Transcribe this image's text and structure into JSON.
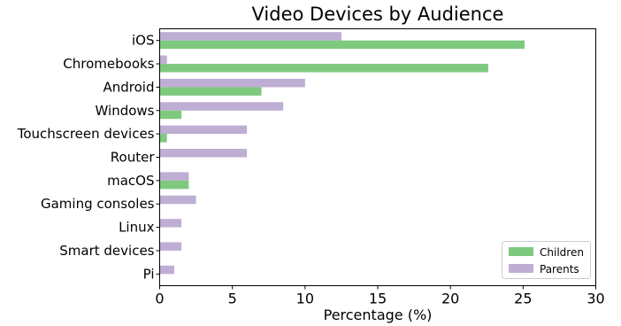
{
  "chart_data": {
    "type": "bar",
    "orientation": "horizontal",
    "title": "Video Devices by Audience",
    "xlabel": "Percentage (%)",
    "ylabel": "",
    "xlim": [
      0,
      30
    ],
    "xticks": [
      0,
      5,
      10,
      15,
      20,
      25,
      30
    ],
    "grid": false,
    "legend_position": "lower-right",
    "categories": [
      "iOS",
      "Chromebooks",
      "Android",
      "Windows",
      "Touchscreen devices",
      "Router",
      "macOS",
      "Gaming consoles",
      "Linux",
      "Smart devices",
      "Pi"
    ],
    "series": [
      {
        "name": "Children",
        "color": "#7fc97f",
        "values": [
          25.1,
          22.6,
          7.0,
          1.5,
          0.5,
          0.0,
          2.0,
          0.0,
          0.0,
          0.0,
          0.0
        ]
      },
      {
        "name": "Parents",
        "color": "#beaed4",
        "values": [
          12.5,
          0.5,
          10.0,
          8.5,
          6.0,
          6.0,
          2.0,
          2.5,
          1.5,
          1.5,
          1.0
        ]
      }
    ]
  }
}
